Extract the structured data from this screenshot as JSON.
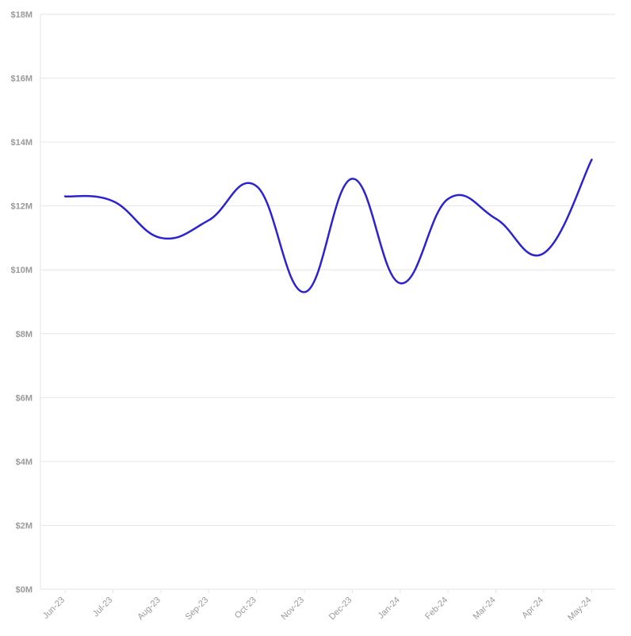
{
  "chart_data": {
    "type": "line",
    "title": "",
    "xlabel": "",
    "ylabel": "",
    "categories": [
      "Jun-23",
      "Jul-23",
      "Aug-23",
      "Sep-23",
      "Oct-23",
      "Nov-23",
      "Dec-23",
      "Jan-24",
      "Feb-24",
      "Mar-24",
      "Apr-24",
      "May-24"
    ],
    "series": [
      {
        "color": "#2b22d4",
        "values": [
          12.3,
          12.15,
          11.0,
          11.55,
          12.62,
          9.3,
          12.85,
          9.58,
          12.22,
          11.6,
          10.52,
          13.45
        ]
      }
    ],
    "ylim": [
      0,
      18
    ],
    "yticks": [
      0,
      2,
      4,
      6,
      8,
      10,
      12,
      14,
      16,
      18
    ],
    "ytick_labels": [
      "$0M",
      "$2M",
      "$4M",
      "$6M",
      "$8M",
      "$10M",
      "$12M",
      "$14M",
      "$16M",
      "$18M"
    ],
    "grid": true,
    "legend": "none",
    "curve": "smooth"
  }
}
